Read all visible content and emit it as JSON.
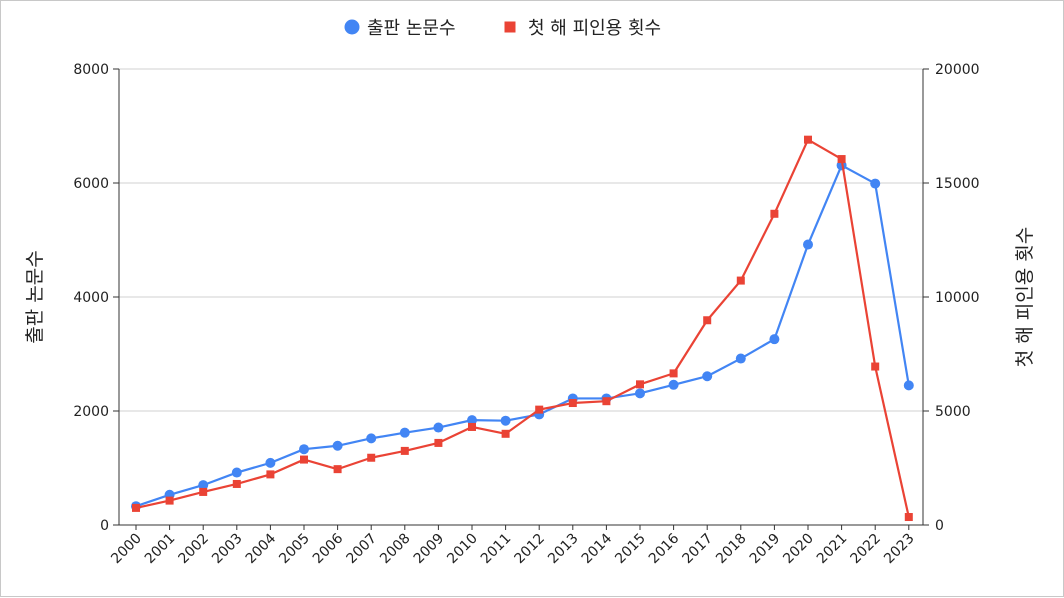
{
  "chart_data": {
    "type": "line",
    "categories": [
      "2000",
      "2001",
      "2002",
      "2003",
      "2004",
      "2005",
      "2006",
      "2007",
      "2008",
      "2009",
      "2010",
      "2011",
      "2012",
      "2013",
      "2014",
      "2015",
      "2016",
      "2017",
      "2018",
      "2019",
      "2020",
      "2021",
      "2022",
      "2023"
    ],
    "series": [
      {
        "name": "출판 논문수",
        "axis": "left",
        "color": "#4285f4",
        "marker": "circle",
        "values": [
          330,
          530,
          700,
          920,
          1090,
          1330,
          1390,
          1520,
          1620,
          1710,
          1840,
          1830,
          1940,
          2220,
          2220,
          2310,
          2460,
          2610,
          2920,
          3260,
          4920,
          6310,
          5990,
          2450
        ]
      },
      {
        "name": "첫 해 피인용 횟수",
        "axis": "right",
        "color": "#ea4335",
        "marker": "square",
        "values": [
          750,
          1070,
          1450,
          1800,
          2220,
          2870,
          2450,
          2950,
          3250,
          3600,
          4300,
          4000,
          5060,
          5350,
          5430,
          6170,
          6650,
          8980,
          10720,
          13650,
          16900,
          16050,
          6950,
          350
        ]
      }
    ],
    "ylabel": "출판 논문수",
    "y2label": "첫 해 피인용 횟수",
    "ylim": [
      0,
      8000
    ],
    "y2lim": [
      0,
      20000
    ],
    "yticks": [
      "0",
      "2000",
      "4000",
      "6000",
      "8000"
    ],
    "y2ticks": [
      "0",
      "5000",
      "10000",
      "15000",
      "20000"
    ],
    "grid": true,
    "legend": "top-center"
  }
}
